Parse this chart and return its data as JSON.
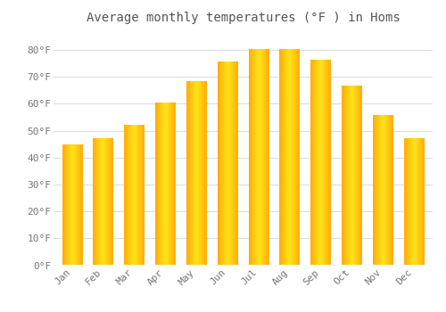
{
  "title": "Average monthly temperatures (°F ) in Homs",
  "months": [
    "Jan",
    "Feb",
    "Mar",
    "Apr",
    "May",
    "Jun",
    "Jul",
    "Aug",
    "Sep",
    "Oct",
    "Nov",
    "Dec"
  ],
  "values": [
    44.5,
    47,
    52,
    60,
    68,
    75.5,
    80,
    80,
    76,
    66.5,
    55.5,
    47
  ],
  "yticks": [
    0,
    10,
    20,
    30,
    40,
    50,
    60,
    70,
    80
  ],
  "ytick_labels": [
    "0°F",
    "10°F",
    "20°F",
    "30°F",
    "40°F",
    "50°F",
    "60°F",
    "70°F",
    "80°F"
  ],
  "ylim": [
    0,
    87
  ],
  "background_color": "#FFFFFF",
  "grid_color": "#DDDDDD",
  "title_fontsize": 10,
  "tick_fontsize": 8,
  "bar_width": 0.65,
  "bar_color_left": "#E8870A",
  "bar_color_center": "#FFCC44",
  "bar_color_right": "#E8870A"
}
